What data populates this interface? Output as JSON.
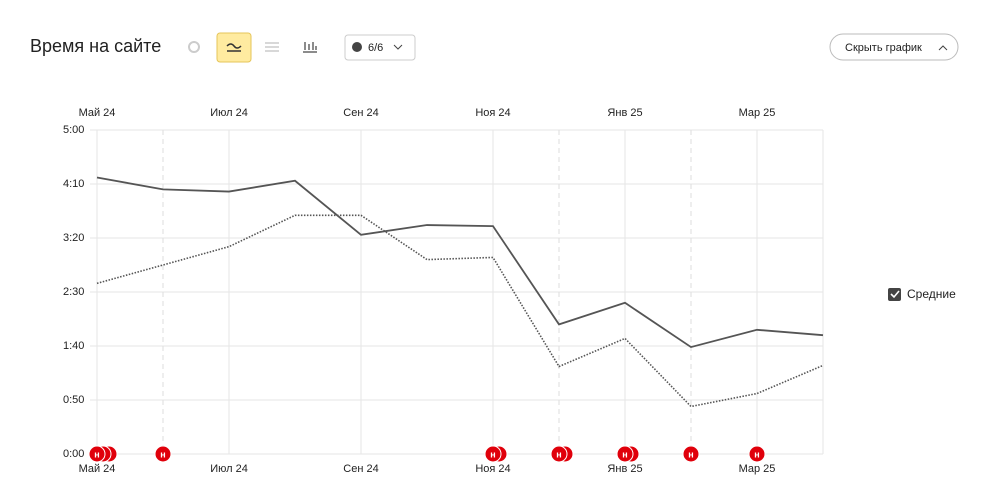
{
  "header": {
    "title": "Время на сайте",
    "counter": "6/6",
    "hide_button": "Скрыть график"
  },
  "chart_data": {
    "type": "line",
    "categories": [
      "Май 24",
      null,
      "Июл 24",
      null,
      "Сен 24",
      null,
      "Ноя 24",
      null,
      "Янв 25",
      null,
      "Мар 25",
      null
    ],
    "series": [
      {
        "color": "#555555",
        "style": "solid",
        "values": [
          256,
          245,
          243,
          253,
          203,
          212,
          211,
          120,
          140,
          99,
          115,
          110
        ]
      },
      {
        "color": "#555555",
        "style": "dotted",
        "values": [
          158,
          175,
          192,
          221,
          221,
          180,
          182,
          81,
          107,
          44,
          56,
          82
        ]
      }
    ],
    "ylim": [
      0,
      300
    ],
    "yticks": [
      {
        "value": 0,
        "label": "0:00"
      },
      {
        "value": 50,
        "label": "0:50"
      },
      {
        "value": 100,
        "label": "1:40"
      },
      {
        "value": 150,
        "label": "2:30"
      },
      {
        "value": 200,
        "label": "3:20"
      },
      {
        "value": 250,
        "label": "4:10"
      },
      {
        "value": 300,
        "label": "5:00"
      }
    ],
    "grid": true,
    "legend_label": "Средние",
    "annotations": [
      {
        "at": 0,
        "count": 3,
        "label": "н"
      },
      {
        "at": 1,
        "count": 1,
        "label": "н"
      },
      {
        "at": 6,
        "count": 2,
        "label": "н"
      },
      {
        "at": 7,
        "count": 2,
        "label": "н"
      },
      {
        "at": 8,
        "count": 2,
        "label": "н"
      },
      {
        "at": 9,
        "count": 1,
        "label": "н"
      },
      {
        "at": 10,
        "count": 1,
        "label": "н"
      }
    ]
  }
}
